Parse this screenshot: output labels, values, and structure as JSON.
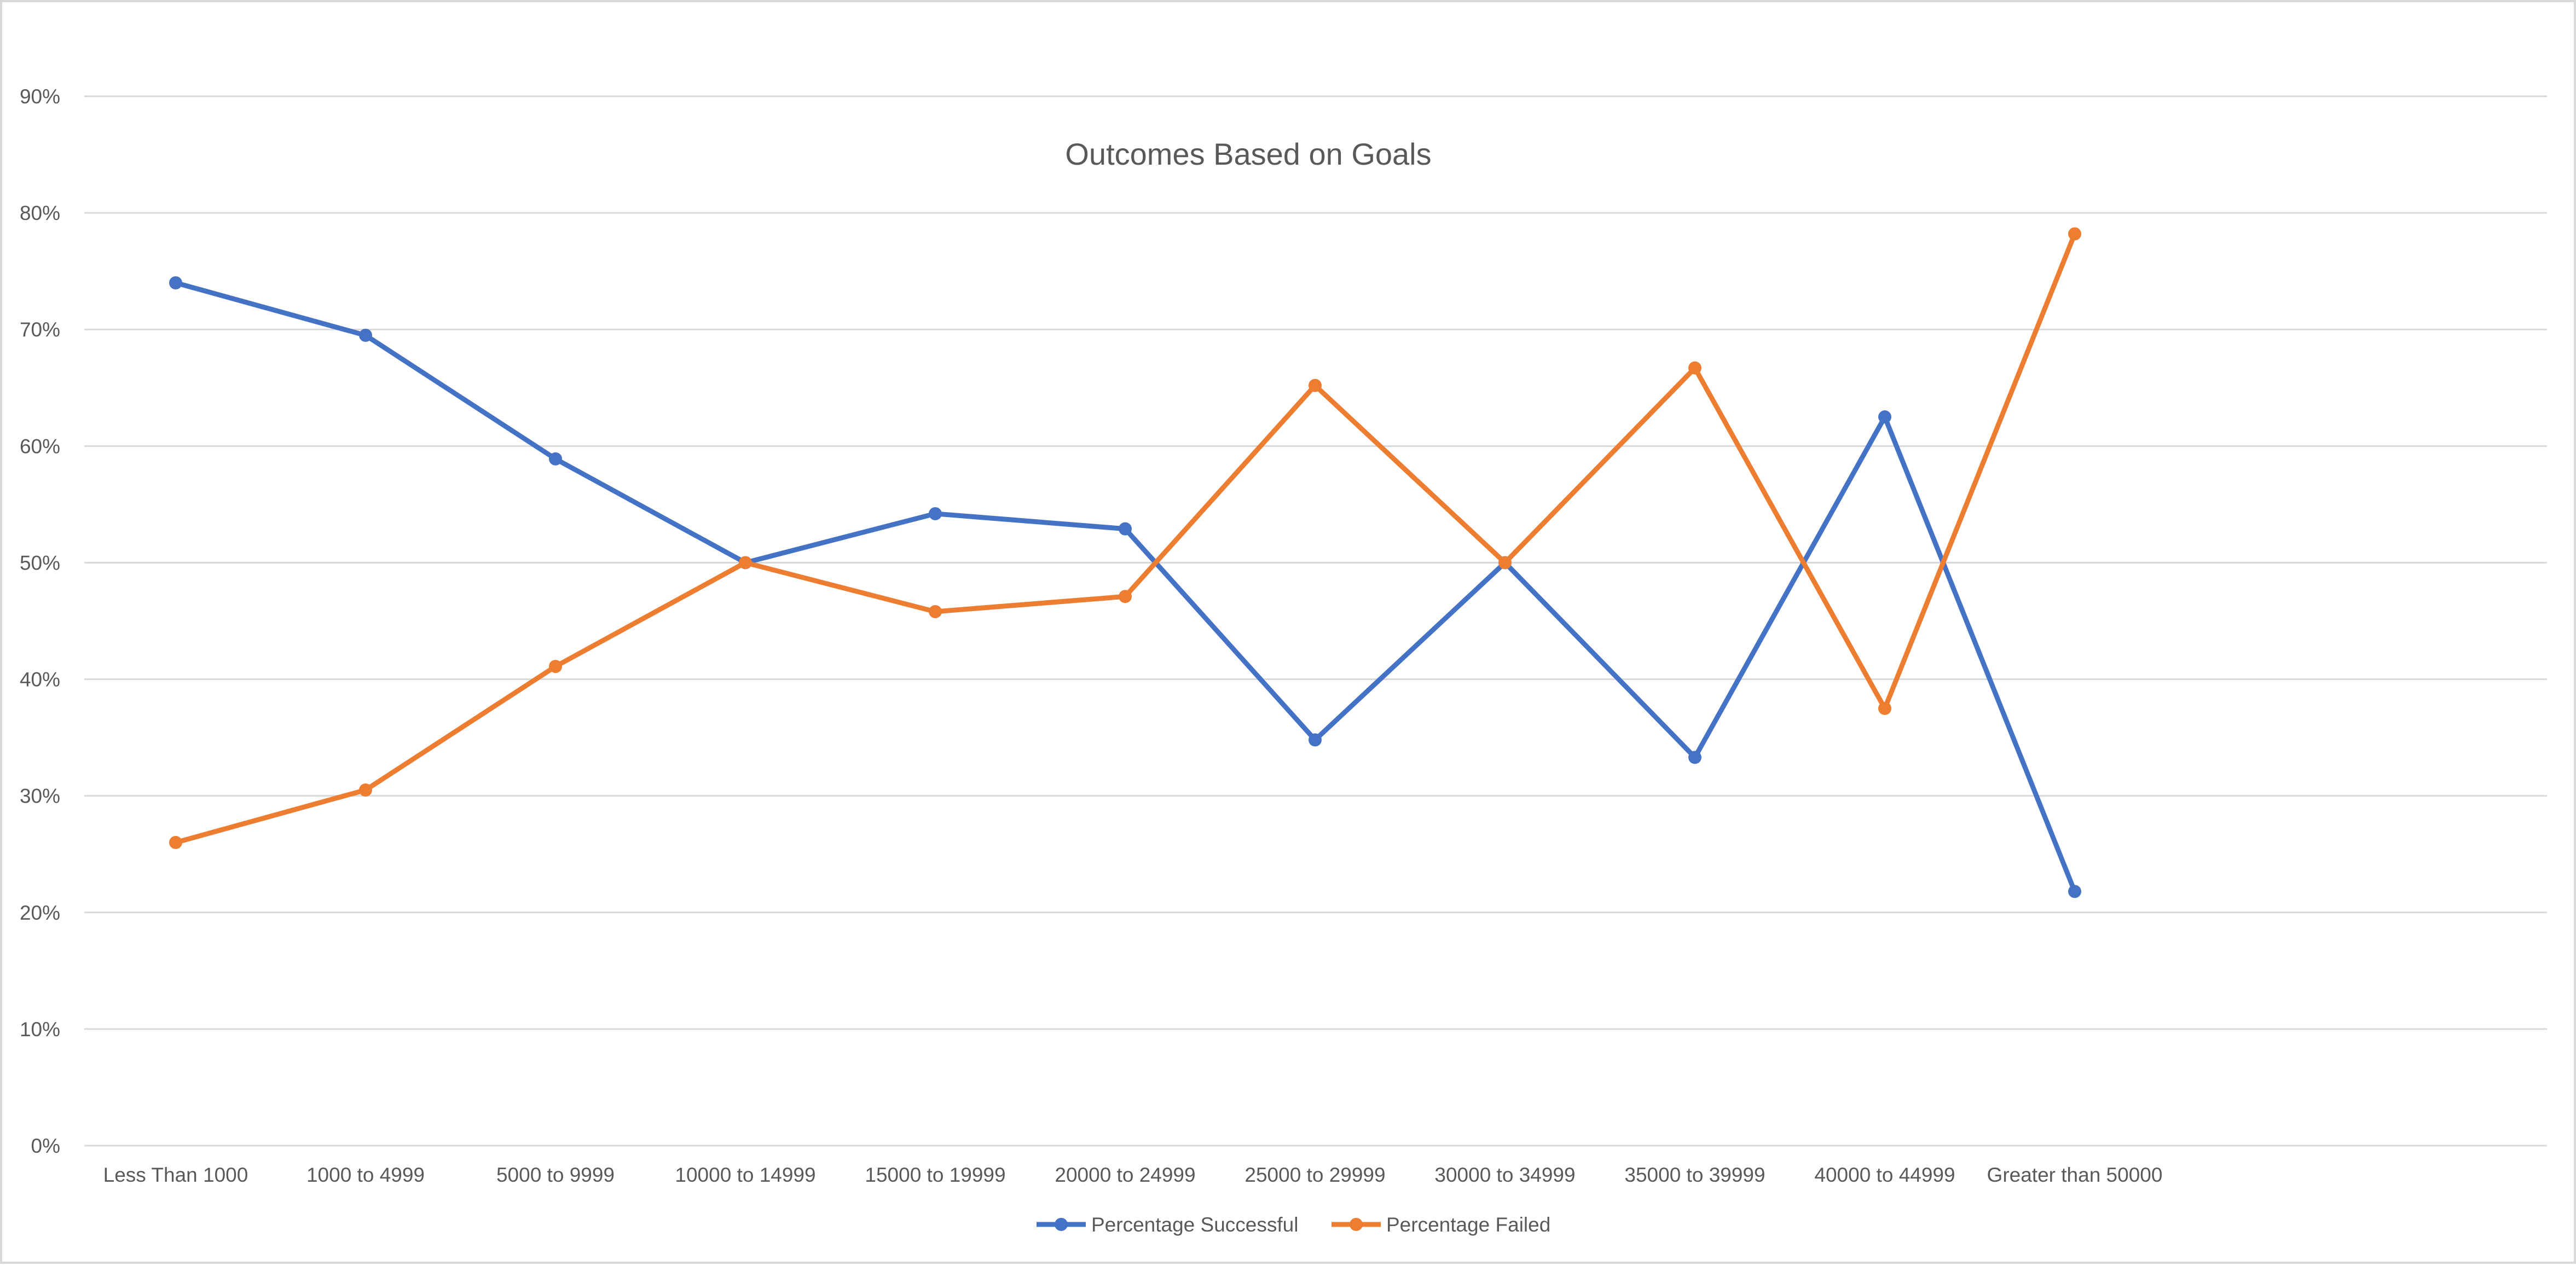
{
  "chart_data": {
    "type": "line",
    "title": "Outcomes Based on Goals",
    "xlabel": "",
    "ylabel": "",
    "categories": [
      "Less Than 1000",
      "1000 to 4999",
      "5000 to 9999",
      "10000 to 14999",
      "15000 to 19999",
      "20000 to 24999",
      "25000 to 29999",
      "30000 to 34999",
      "35000 to 39999",
      "40000 to 44999",
      "Greater than 50000"
    ],
    "ylim": [
      0,
      90
    ],
    "yticks": [
      "0%",
      "10%",
      "20%",
      "30%",
      "40%",
      "50%",
      "60%",
      "70%",
      "80%",
      "90%"
    ],
    "grid": true,
    "legend": "bottom",
    "series": [
      {
        "name": "Percentage Successful",
        "color": "#4472c4",
        "values": [
          74,
          69.5,
          58.9,
          50,
          54.2,
          52.9,
          34.8,
          50,
          33.3,
          62.5,
          21.8
        ]
      },
      {
        "name": "Percentage Failed",
        "color": "#ed7d31",
        "values": [
          26,
          30.5,
          41.1,
          50,
          45.8,
          47.1,
          65.2,
          50,
          66.7,
          37.5,
          78.2
        ]
      }
    ]
  }
}
